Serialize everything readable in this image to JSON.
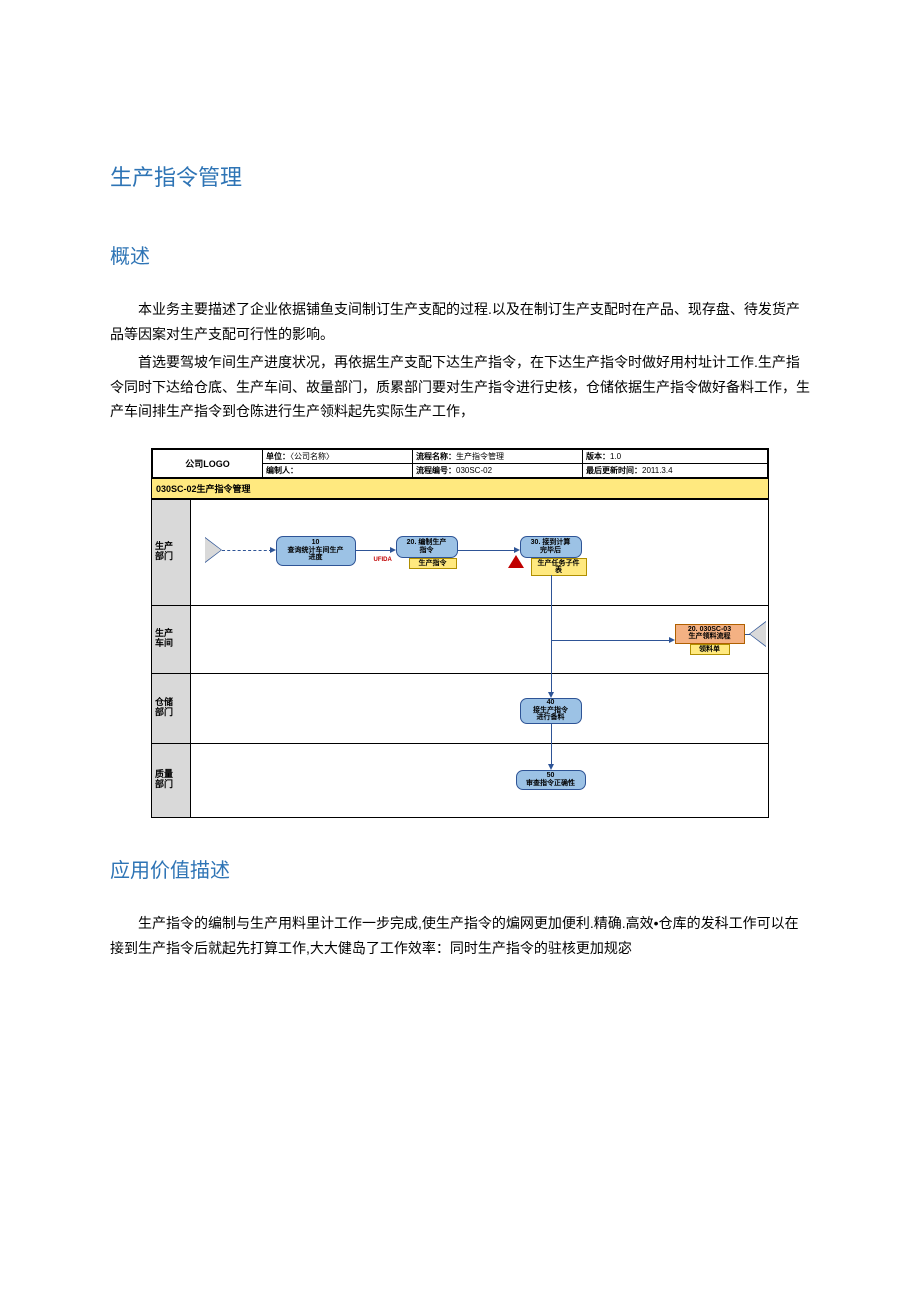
{
  "headings": {
    "h1": "生产指令管理",
    "h2_overview": "概述",
    "h2_value": "应用价值描述"
  },
  "overview": {
    "p1": "本业务主要描述了企业依据铺鱼支间制订生产支配的过程.以及在制订生产支配时在产品、现存盘、待发货产品等因案对生产支配可行性的影响。",
    "p2": "首选要驾坡乍间生产进度状况，再依据生产支配下达生产指令，在下达生产指令时做好用村址计工作.生产指令同时下达给仓底、生产车间、故量部门，质累部门要对生产指令进行史核，仓储依据生产指令做好备料工作，生产车间排生产指令到仓陈进行生产领料起先实际生产工作，"
  },
  "value": {
    "p1": "生产指令的编制与生产用料里计工作一步完成,使生产指令的煸网更加便利.精确.高效•仓库的发科工作可以在接到生产指令后就起先打算工作,大大健岛了工作效率：同时生产指令的驻核更加规宓"
  },
  "diagram": {
    "header": {
      "logo": "公司LOGO",
      "unit_label": "单位：",
      "unit_value": "〈公司名称〉",
      "flow_name_label": "流程名称：",
      "flow_name_value": "生产指令管理",
      "version_label": "版本：",
      "version_value": "1.0",
      "author_label": "编制人：",
      "flow_no_label": "流程编号：",
      "flow_no_value": "030SC-02",
      "update_label": "最后更新时间：",
      "update_value": "2011.3.4"
    },
    "title_band": "030SC-02生产指令管理",
    "lanes": {
      "l1": "生产\n部门",
      "l2": "生产\n车间",
      "l3": "仓储\n部门",
      "l4": "质量\n部门"
    },
    "nodes": {
      "n10": "10\n查询统计车间生产\n进度",
      "n20_label": "20. 编制生产\n指令",
      "n20_note": "生产指令",
      "n20_red": "UFIDA",
      "n30_label": "30. 接到计算\n完毕后",
      "n30_note": "生产任务子件\n表",
      "n40": "40\n接生产指令\n进行备料",
      "n50": "50\n审查指令正确性",
      "n60_label": "20. 030SC-03\n生产领料流程",
      "n60_note": "领料单"
    },
    "colors": {
      "heading_blue": "#2e74b5",
      "node_fill": "#9cc2e5",
      "node_border": "#2e5496",
      "yellow": "#ffe97f",
      "orange": "#f4b183",
      "band_bg": "#ffe97f",
      "lane_label_bg": "#d9d9d9",
      "warn_red": "#c00000",
      "border": "#000000"
    }
  }
}
